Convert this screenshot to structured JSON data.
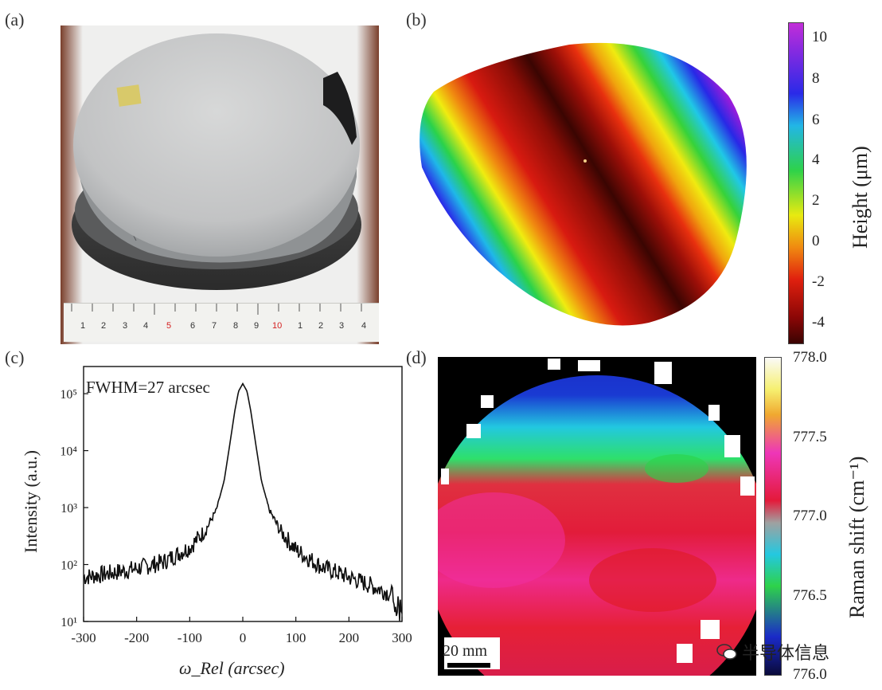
{
  "panels": {
    "a": {
      "label": "(a)",
      "ruler_numbers": [
        "1",
        "2",
        "3",
        "4",
        "5",
        "6",
        "7",
        "8",
        "9",
        "10",
        "1",
        "2",
        "3",
        "4"
      ],
      "ruler_red_indices": [
        4,
        9
      ]
    },
    "b": {
      "label": "(b)",
      "colorbar_label": "Height (μm)",
      "colorbar_ticks": [
        "10",
        "8",
        "6",
        "4",
        "2",
        "0",
        "-2",
        "-4"
      ]
    },
    "c": {
      "label": "(c)",
      "annotation": "FWHM=27 arcsec",
      "ylabel": "Intensity (a.u.)",
      "xlabel": "ω_Rel (arcsec)"
    },
    "d": {
      "label": "(d)",
      "colorbar_label": "Raman shift (cm⁻¹)",
      "colorbar_ticks": [
        "778.0",
        "777.5",
        "777.0",
        "776.5",
        "776.0"
      ],
      "scalebar": "20 mm"
    }
  },
  "watermark": "半导体信息",
  "chart_data": {
    "type": "line",
    "title": "",
    "xlabel": "ω_Rel (arcsec)",
    "ylabel": "Intensity (a.u.)",
    "xlim": [
      -300,
      300
    ],
    "ylim": [
      10,
      300000
    ],
    "yscale": "log",
    "x_ticks": [
      "-300",
      "-200",
      "-100",
      "0",
      "100",
      "200",
      "300"
    ],
    "y_ticks": [
      "10¹",
      "10²",
      "10³",
      "10⁴",
      "10⁵"
    ],
    "annotation": "FWHM=27 arcsec",
    "series": [
      {
        "x": [
          -300,
          -250,
          -200,
          -150,
          -100,
          -70,
          -50,
          -35,
          -25,
          -15,
          -8,
          0,
          8,
          15,
          25,
          35,
          50,
          70,
          100,
          150,
          200,
          250,
          300
        ],
        "y": [
          60,
          70,
          85,
          110,
          200,
          400,
          900,
          3000,
          12000,
          50000,
          110000,
          150000,
          110000,
          50000,
          12000,
          3000,
          900,
          400,
          180,
          90,
          60,
          40,
          25
        ]
      }
    ]
  }
}
